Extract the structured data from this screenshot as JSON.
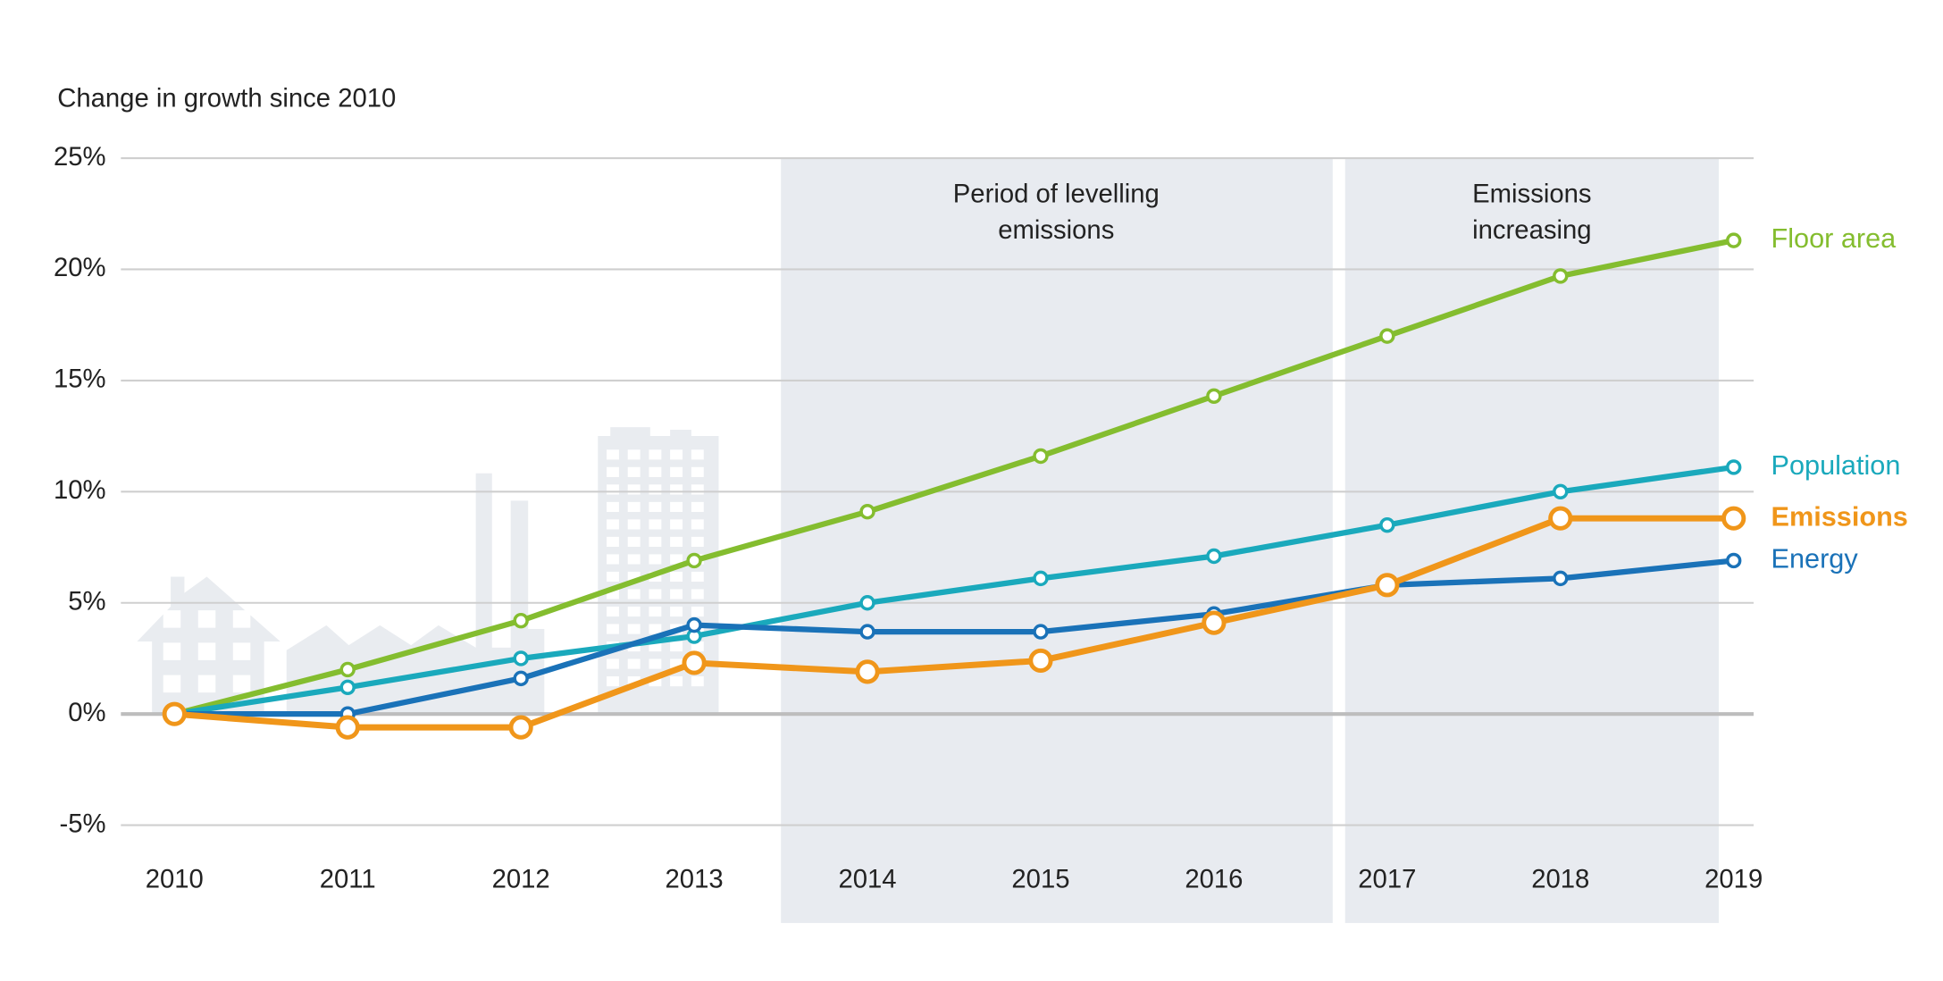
{
  "chart_data": {
    "type": "line",
    "y_axis_label": "Change in growth since 2010",
    "categories": [
      "2010",
      "2011",
      "2012",
      "2013",
      "2014",
      "2015",
      "2016",
      "2017",
      "2018",
      "2019"
    ],
    "series": [
      {
        "name": "Floor area",
        "color": "#84bd2f",
        "values": [
          0,
          2.0,
          4.2,
          6.9,
          9.1,
          11.6,
          14.3,
          17.0,
          19.7,
          21.3
        ]
      },
      {
        "name": "Population",
        "color": "#1aa9bc",
        "values": [
          0,
          1.2,
          2.5,
          3.5,
          5.0,
          6.1,
          7.1,
          8.5,
          10.0,
          11.1
        ]
      },
      {
        "name": "Energy",
        "color": "#1a72b8",
        "values": [
          0,
          0,
          1.6,
          4.0,
          3.7,
          3.7,
          4.5,
          5.8,
          6.1,
          6.9
        ]
      },
      {
        "name": "Emissions",
        "color": "#f0961a",
        "highlight": true,
        "values": [
          0,
          -0.6,
          -0.6,
          2.3,
          1.9,
          2.4,
          4.1,
          5.8,
          8.8,
          8.8
        ]
      }
    ],
    "ylim": [
      -5,
      25
    ],
    "yticks": [
      {
        "value": -5,
        "label": "-5%"
      },
      {
        "value": 0,
        "label": "0%"
      },
      {
        "value": 5,
        "label": "5%"
      },
      {
        "value": 10,
        "label": "10%"
      },
      {
        "value": 15,
        "label": "15%"
      },
      {
        "value": 20,
        "label": "20%"
      },
      {
        "value": 25,
        "label": "25%"
      }
    ],
    "grid": true,
    "annotations": [
      {
        "text": [
          "Period of levelling",
          "emissions"
        ]
      },
      {
        "text": [
          "Emissions",
          "increasing"
        ]
      }
    ]
  }
}
